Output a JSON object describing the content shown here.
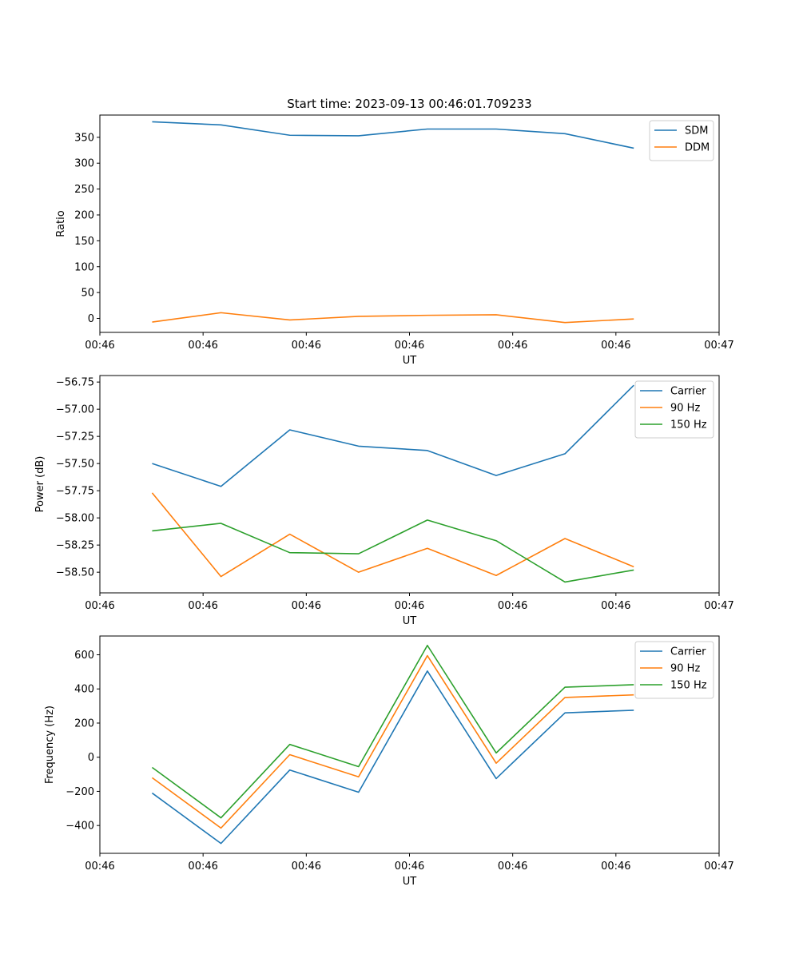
{
  "chart_data": [
    {
      "type": "line",
      "title": "Start time: 2023-09-13 00:46:01.709233",
      "xlabel": "UT",
      "ylabel": "Ratio",
      "x": [
        1,
        2,
        3,
        4,
        5,
        6,
        7,
        8
      ],
      "xlim": [
        0.24,
        9.24
      ],
      "xticks": [
        0.24,
        1.74,
        3.24,
        4.74,
        6.24,
        7.74,
        9.24
      ],
      "xtick_labels": [
        "00:46",
        "00:46",
        "00:46",
        "00:46",
        "00:46",
        "00:46",
        "00:47"
      ],
      "ylim": [
        -27,
        393
      ],
      "yticks": [
        0,
        50,
        100,
        150,
        200,
        250,
        300,
        350
      ],
      "ytick_labels": [
        "0",
        "50",
        "100",
        "150",
        "200",
        "250",
        "300",
        "350"
      ],
      "legend_position": "top-right",
      "series": [
        {
          "name": "SDM",
          "color": "#1f77b4",
          "values": [
            380,
            374,
            354,
            353,
            366,
            366,
            357,
            329
          ]
        },
        {
          "name": "DDM",
          "color": "#ff7f0e",
          "values": [
            -7,
            11,
            -3,
            4,
            6,
            7,
            -8,
            -1
          ]
        }
      ]
    },
    {
      "type": "line",
      "title": "",
      "xlabel": "UT",
      "ylabel": "Power (dB)",
      "x": [
        1,
        2,
        3,
        4,
        5,
        6,
        7,
        8
      ],
      "xlim": [
        0.24,
        9.24
      ],
      "xticks": [
        0.24,
        1.74,
        3.24,
        4.74,
        6.24,
        7.74,
        9.24
      ],
      "xtick_labels": [
        "00:46",
        "00:46",
        "00:46",
        "00:46",
        "00:46",
        "00:46",
        "00:47"
      ],
      "ylim": [
        -58.69,
        -56.69
      ],
      "yticks": [
        -58.5,
        -58.25,
        -58.0,
        -57.75,
        -57.5,
        -57.25,
        -57.0,
        -56.75
      ],
      "ytick_labels": [
        "−58.50",
        "−58.25",
        "−58.00",
        "−57.75",
        "−57.50",
        "−57.25",
        "−57.00",
        "−56.75"
      ],
      "legend_position": "top-right",
      "series": [
        {
          "name": "Carrier",
          "color": "#1f77b4",
          "values": [
            -57.5,
            -57.71,
            -57.19,
            -57.34,
            -57.38,
            -57.61,
            -57.41,
            -56.78
          ]
        },
        {
          "name": "90 Hz",
          "color": "#ff7f0e",
          "values": [
            -57.77,
            -58.54,
            -58.15,
            -58.5,
            -58.28,
            -58.53,
            -58.19,
            -58.45
          ]
        },
        {
          "name": "150 Hz",
          "color": "#2ca02c",
          "values": [
            -58.12,
            -58.05,
            -58.32,
            -58.33,
            -58.02,
            -58.21,
            -58.59,
            -58.48
          ]
        }
      ]
    },
    {
      "type": "line",
      "title": "",
      "xlabel": "UT",
      "ylabel": "Frequency (Hz)",
      "x": [
        1,
        2,
        3,
        4,
        5,
        6,
        7,
        8
      ],
      "xlim": [
        0.24,
        9.24
      ],
      "xticks": [
        0.24,
        1.74,
        3.24,
        4.74,
        6.24,
        7.74,
        9.24
      ],
      "xtick_labels": [
        "00:46",
        "00:46",
        "00:46",
        "00:46",
        "00:46",
        "00:46",
        "00:47"
      ],
      "ylim": [
        -563,
        710
      ],
      "yticks": [
        -400,
        -200,
        0,
        200,
        400,
        600
      ],
      "ytick_labels": [
        "−400",
        "−200",
        "0",
        "200",
        "400",
        "600"
      ],
      "legend_position": "top-right",
      "series": [
        {
          "name": "Carrier",
          "color": "#1f77b4",
          "values": [
            -210,
            -505,
            -75,
            -205,
            505,
            -125,
            260,
            275
          ]
        },
        {
          "name": "90 Hz",
          "color": "#ff7f0e",
          "values": [
            -120,
            -415,
            15,
            -115,
            595,
            -35,
            350,
            365
          ]
        },
        {
          "name": "150 Hz",
          "color": "#2ca02c",
          "values": [
            -60,
            -355,
            75,
            -55,
            655,
            25,
            410,
            425
          ]
        }
      ]
    }
  ]
}
